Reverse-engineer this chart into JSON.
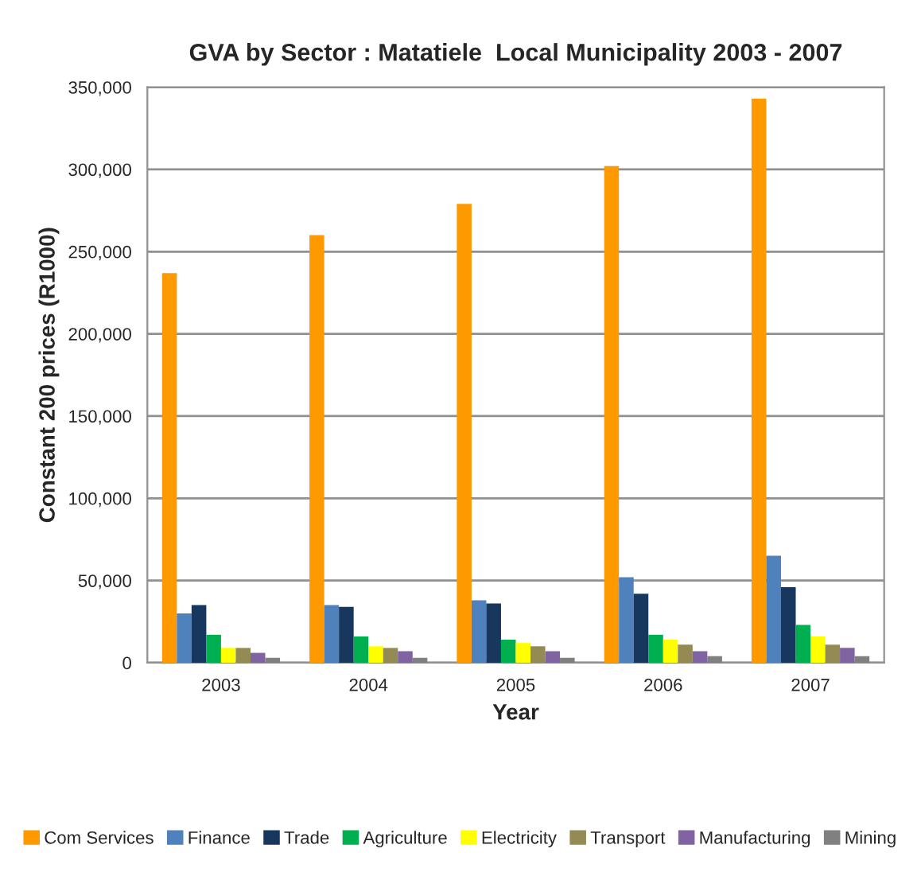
{
  "chart_data": {
    "type": "bar",
    "title": "GVA by Sector : Matatiele  Local Municipality 2003 - 2007",
    "xlabel": "Year",
    "ylabel": "Constant 200 prices (R1000)",
    "categories": [
      "2003",
      "2004",
      "2005",
      "2006",
      "2007"
    ],
    "series": [
      {
        "name": "Com Services",
        "color": "#ff9900",
        "values": [
          237000,
          260000,
          279000,
          302000,
          343000
        ]
      },
      {
        "name": "Finance",
        "color": "#4f81bd",
        "values": [
          30000,
          35000,
          38000,
          52000,
          65000
        ]
      },
      {
        "name": "Trade",
        "color": "#17375e",
        "values": [
          35000,
          34000,
          36000,
          42000,
          46000
        ]
      },
      {
        "name": "Agriculture",
        "color": "#00b050",
        "values": [
          17000,
          16000,
          14000,
          17000,
          23000
        ]
      },
      {
        "name": "Electricity",
        "color": "#ffff00",
        "values": [
          9000,
          10000,
          12000,
          14000,
          16000
        ]
      },
      {
        "name": "Transport",
        "color": "#948a54",
        "values": [
          9000,
          9000,
          10000,
          11000,
          11000
        ]
      },
      {
        "name": "Manufacturing",
        "color": "#8064a2",
        "values": [
          6000,
          7000,
          7000,
          7000,
          9000
        ]
      },
      {
        "name": "Mining",
        "color": "#808080",
        "values": [
          3000,
          3000,
          3000,
          4000,
          4000
        ]
      }
    ],
    "ylim": [
      0,
      350000
    ],
    "yticks": [
      {
        "value": 0,
        "label": "0"
      },
      {
        "value": 50000,
        "label": "50,000"
      },
      {
        "value": 100000,
        "label": "100,000"
      },
      {
        "value": 150000,
        "label": "150,000"
      },
      {
        "value": 200000,
        "label": "200,000"
      },
      {
        "value": 250000,
        "label": "250,000"
      },
      {
        "value": 300000,
        "label": "300,000"
      },
      {
        "value": 350000,
        "label": "350,000"
      }
    ],
    "grid": "y",
    "legend": "bottom"
  }
}
